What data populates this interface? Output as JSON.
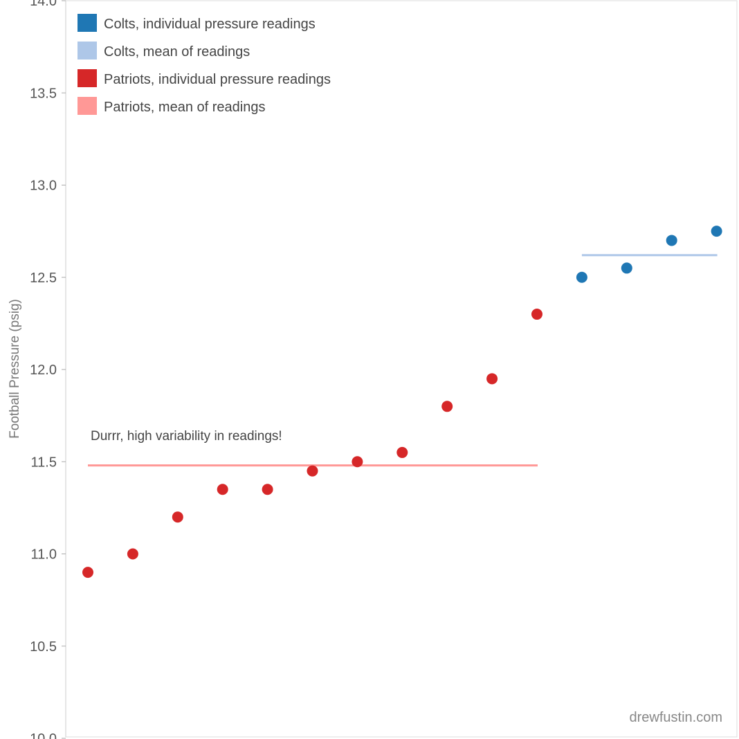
{
  "chart_data": {
    "type": "scatter",
    "ylabel": "Football Pressure (psig)",
    "ylim": [
      10.0,
      14.0
    ],
    "yticks": [
      "10.0",
      "10.5",
      "11.0",
      "11.5",
      "12.0",
      "12.5",
      "13.0",
      "13.5",
      "14.0"
    ],
    "grid": false,
    "legend_position": "top-left",
    "legend": [
      {
        "label": "Colts, individual pressure readings",
        "color": "#1f77b4"
      },
      {
        "label": "Colts, mean of readings",
        "color": "#aec7e8"
      },
      {
        "label": "Patriots, individual pressure readings",
        "color": "#d62728"
      },
      {
        "label": "Patriots, mean of readings",
        "color": "#ff9896"
      }
    ],
    "series": [
      {
        "name": "Patriots, individual pressure readings",
        "color": "#d62728",
        "x": [
          1,
          2,
          3,
          4,
          5,
          6,
          7,
          8,
          9,
          10,
          11
        ],
        "y": [
          10.9,
          11.0,
          11.2,
          11.35,
          11.35,
          11.45,
          11.5,
          11.55,
          11.8,
          11.95,
          12.3
        ]
      },
      {
        "name": "Colts, individual pressure readings",
        "color": "#1f77b4",
        "x": [
          12,
          13,
          14,
          15
        ],
        "y": [
          12.5,
          12.55,
          12.7,
          12.75
        ]
      }
    ],
    "means": [
      {
        "name": "Patriots, mean of readings",
        "color": "#ff9896",
        "value": 11.48,
        "x_start": 1,
        "x_end": 11
      },
      {
        "name": "Colts, mean of readings",
        "color": "#aec7e8",
        "value": 12.62,
        "x_start": 12,
        "x_end": 15
      }
    ],
    "annotation": "Durrr, high variability in readings!",
    "credit": "drewfustin.com"
  }
}
